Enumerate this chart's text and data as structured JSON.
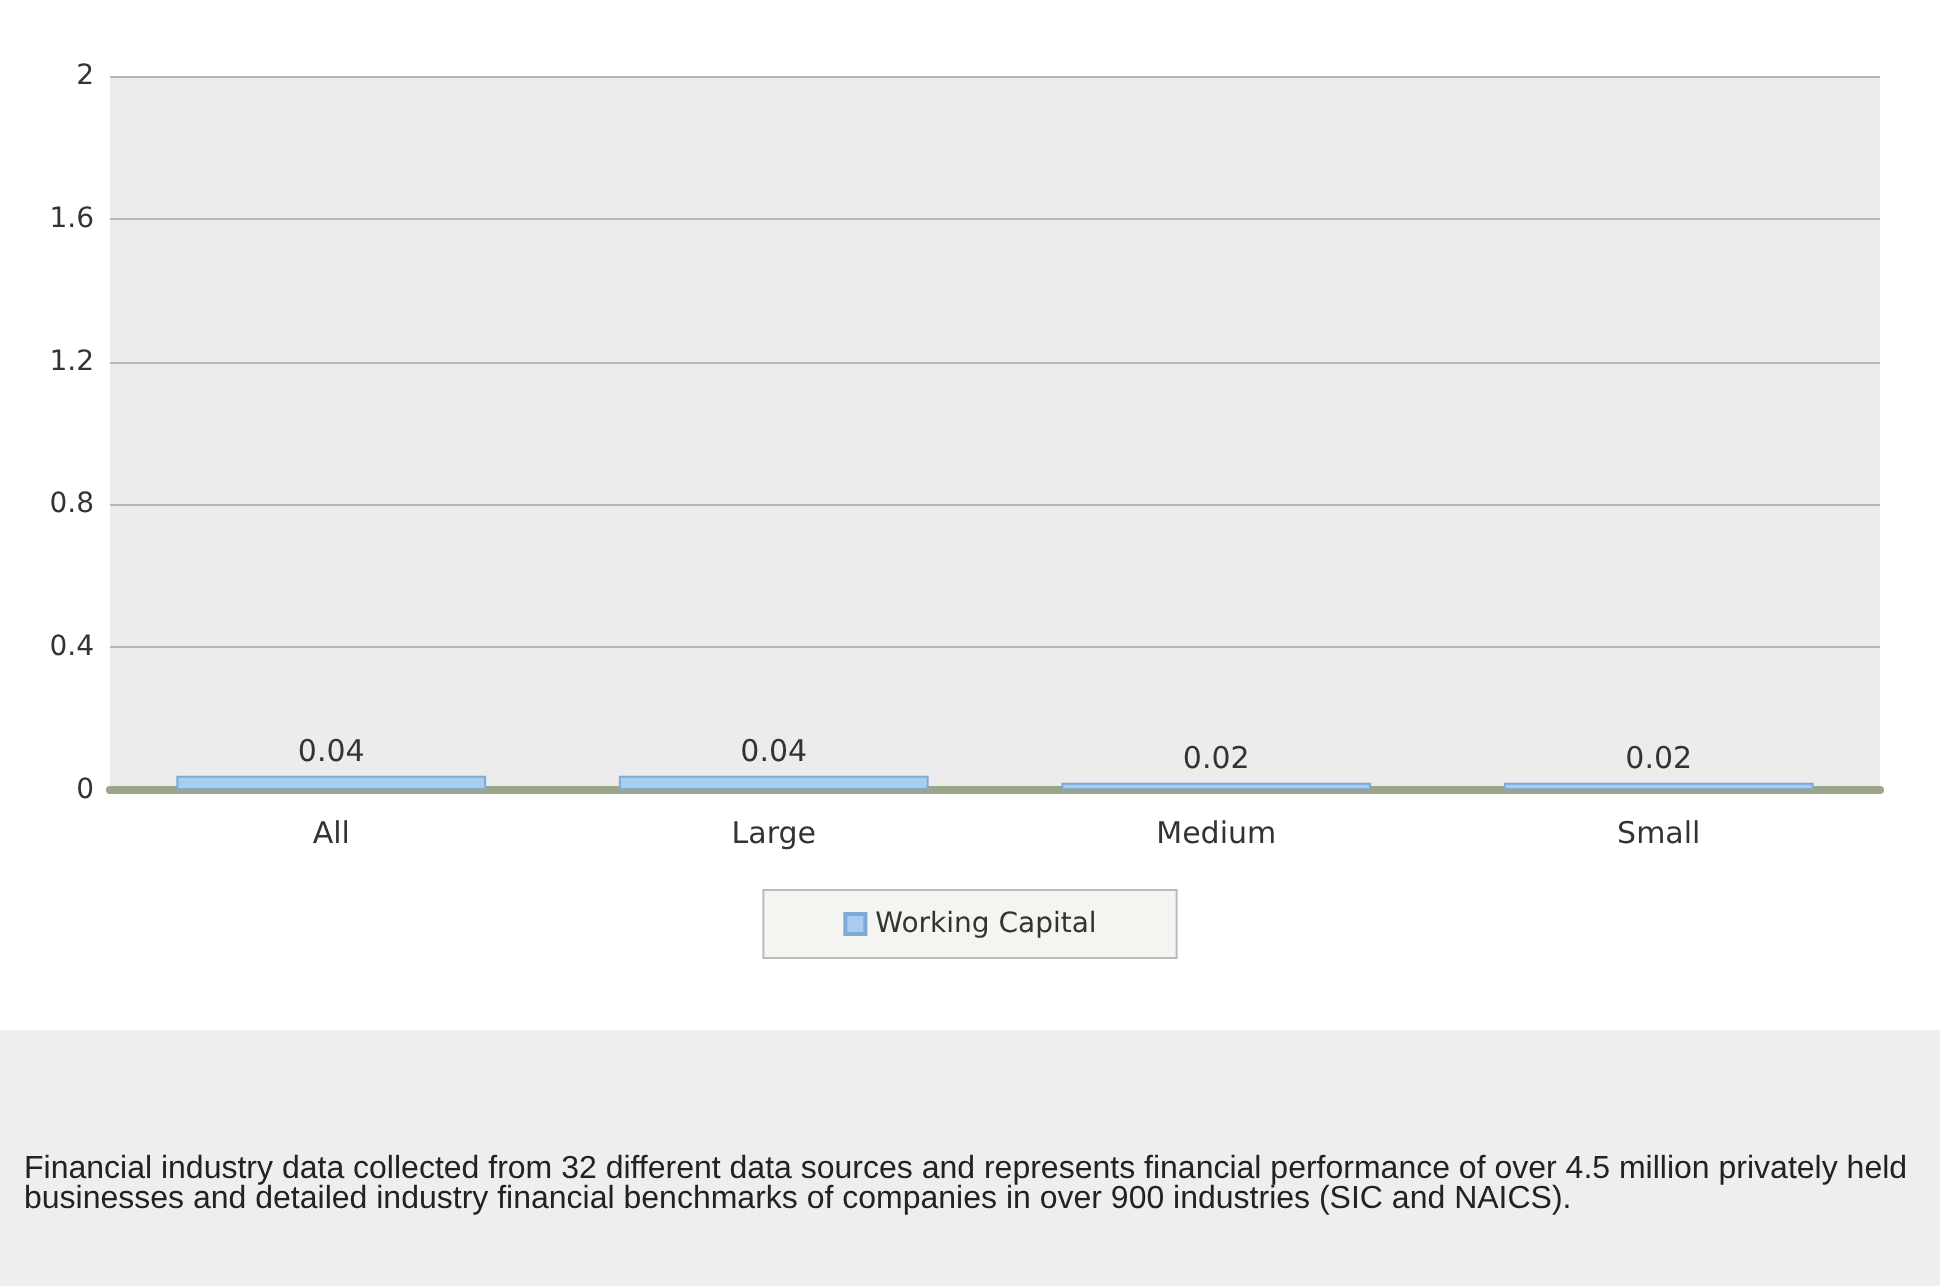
{
  "chart_data": {
    "type": "bar",
    "categories": [
      "All",
      "Large",
      "Medium",
      "Small"
    ],
    "series": [
      {
        "name": "Working Capital",
        "color": "#a9cdf0",
        "values": [
          0.04,
          0.04,
          0.02,
          0.02
        ]
      }
    ],
    "ylim": [
      0,
      2
    ],
    "yticks": [
      0,
      0.4,
      0.8,
      1.2,
      1.6,
      2
    ],
    "grid": "y",
    "legend": "bottom",
    "data_labels": true,
    "annotations": [
      "Financial industry data collected from 32 different data sources and represents financial performance of over 4.5 million privately held businesses and detailed industry financial benchmarks of companies in over 900 industries (SIC and NAICS)."
    ]
  }
}
